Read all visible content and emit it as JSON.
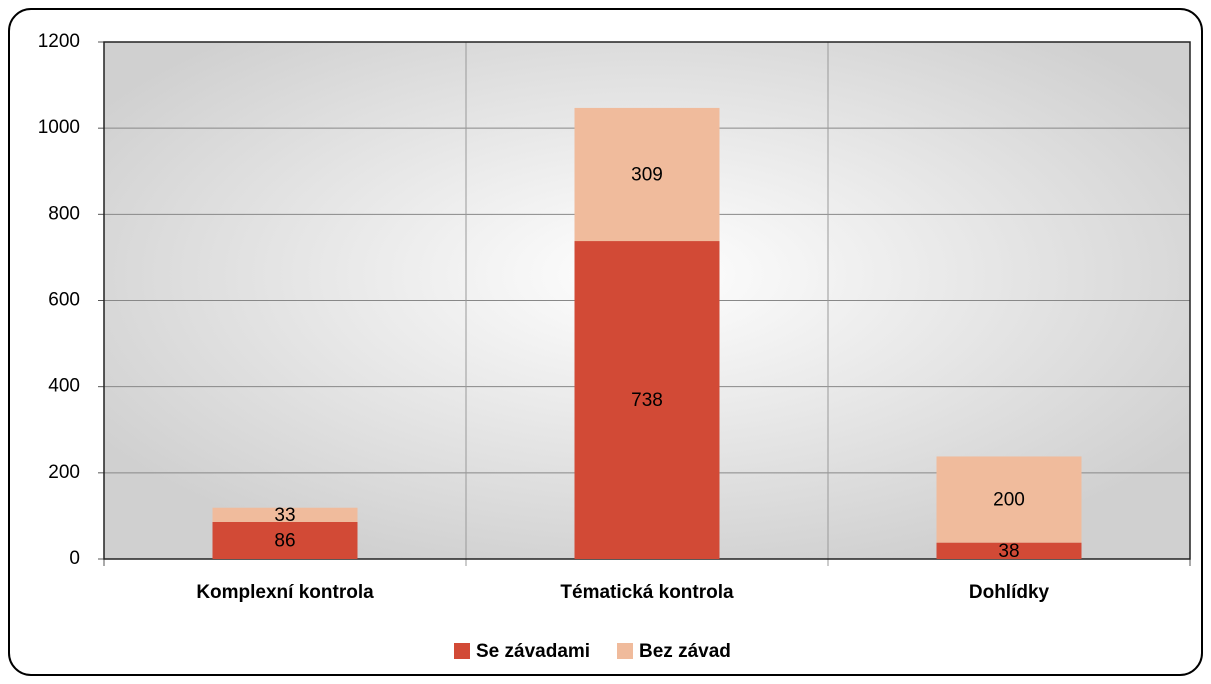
{
  "chart_data": {
    "type": "stacked_bar",
    "categories": [
      "Komplexní kontrola",
      "Tématická kontrola",
      "Dohlídky"
    ],
    "series": [
      {
        "name": "Se závadami",
        "color": "#d24a36",
        "values": [
          86,
          738,
          38
        ]
      },
      {
        "name": "Bez závad",
        "color": "#f0bb9c",
        "values": [
          33,
          309,
          200
        ]
      }
    ],
    "ylim": [
      0,
      1200
    ],
    "yticks": [
      0,
      200,
      400,
      600,
      800,
      1000,
      1200
    ],
    "grid": true,
    "legend": "bottom"
  }
}
